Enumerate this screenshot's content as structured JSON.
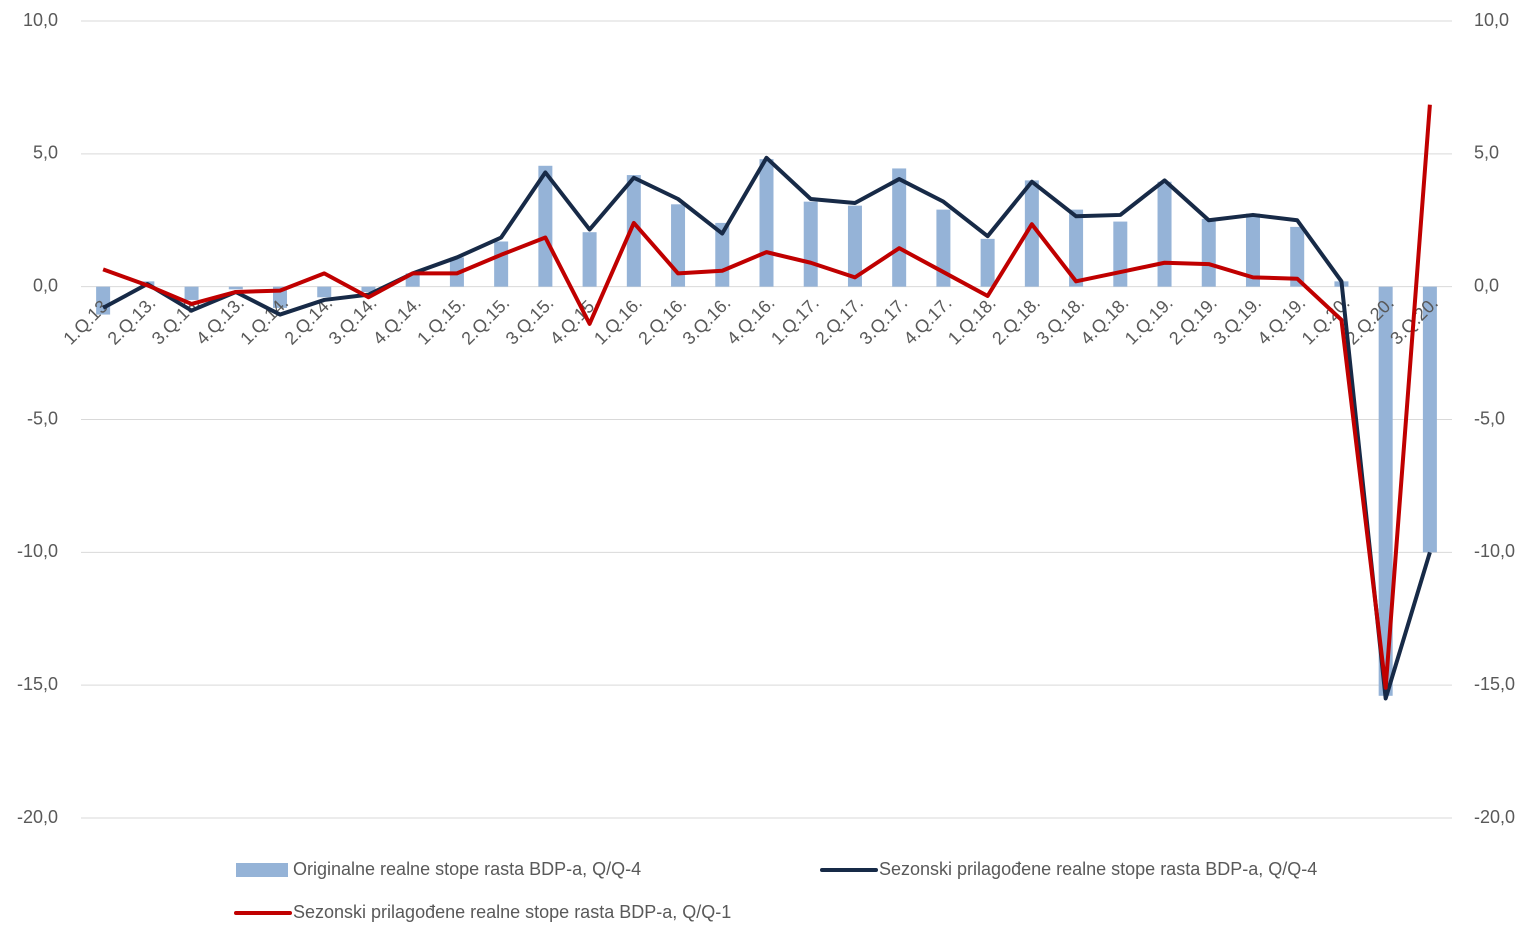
{
  "chart_data": {
    "type": "combo",
    "categories": [
      "1.Q.13.",
      "2.Q.13.",
      "3.Q.13.",
      "4.Q.13.",
      "1.Q.14.",
      "2.Q.14.",
      "3.Q.14.",
      "4.Q.14.",
      "1.Q.15.",
      "2.Q.15.",
      "3.Q.15.",
      "4.Q.15.",
      "1.Q.16.",
      "2.Q.16.",
      "3.Q.16.",
      "4.Q.16.",
      "1.Q.17.",
      "2.Q.17.",
      "3.Q.17.",
      "4.Q.17.",
      "1.Q.18.",
      "2.Q.18.",
      "3.Q.18.",
      "4.Q.18.",
      "1.Q.19.",
      "2.Q.19.",
      "3.Q.19.",
      "4.Q.19.",
      "1.Q.20.",
      "2.Q.20.",
      "3.Q.20."
    ],
    "series": [
      {
        "name": "Originalne realne stope rasta BDP-a, Q/Q-4",
        "type": "bar",
        "color": "#95b3d7",
        "values": [
          -1.05,
          0.2,
          -0.5,
          -0.1,
          -0.8,
          -0.4,
          -0.2,
          0.5,
          1.1,
          1.7,
          4.55,
          2.05,
          4.2,
          3.1,
          2.4,
          4.8,
          3.2,
          3.05,
          4.45,
          2.9,
          1.8,
          4.0,
          2.9,
          2.45,
          3.95,
          2.55,
          2.75,
          2.25,
          0.2,
          -15.4,
          -10.0
        ]
      },
      {
        "name": "Sezonski prilagođene realne stope rasta BDP-a, Q/Q-4",
        "type": "line",
        "color": "#172a47",
        "values": [
          -0.8,
          0.1,
          -0.9,
          -0.2,
          -1.05,
          -0.5,
          -0.3,
          0.5,
          1.1,
          1.85,
          4.3,
          2.15,
          4.1,
          3.3,
          2.0,
          4.85,
          3.3,
          3.15,
          4.05,
          3.2,
          1.9,
          3.95,
          2.65,
          2.7,
          4.0,
          2.5,
          2.7,
          2.5,
          0.2,
          -15.5,
          -10.0
        ]
      },
      {
        "name": "Sezonski prilagođene realne stope rasta BDP-a, Q/Q-1",
        "type": "line",
        "color": "#c00000",
        "values": [
          0.65,
          0.05,
          -0.65,
          -0.2,
          -0.15,
          0.5,
          -0.4,
          0.5,
          0.5,
          1.2,
          1.85,
          -1.4,
          2.4,
          0.5,
          0.6,
          1.3,
          0.9,
          0.35,
          1.45,
          0.55,
          -0.35,
          2.35,
          0.2,
          0.55,
          0.9,
          0.85,
          0.35,
          0.3,
          -1.25,
          -15.1,
          6.85
        ]
      }
    ],
    "ylim": [
      -20,
      10
    ],
    "yticks": [
      {
        "value": 10,
        "label": "10,0"
      },
      {
        "value": 5,
        "label": "5,0"
      },
      {
        "value": 0,
        "label": "0,0"
      },
      {
        "value": -5,
        "label": "-5,0"
      },
      {
        "value": -10,
        "label": "-10,0"
      },
      {
        "value": -15,
        "label": "-15,0"
      },
      {
        "value": -20,
        "label": "-20,0"
      }
    ],
    "y2lim": [
      -20,
      10
    ],
    "y2ticks": [
      {
        "value": 10,
        "label": "10,0"
      },
      {
        "value": 5,
        "label": "5,0"
      },
      {
        "value": 0,
        "label": "0,0"
      },
      {
        "value": -5,
        "label": "-5,0"
      },
      {
        "value": -10,
        "label": "-10,0"
      },
      {
        "value": -15,
        "label": "-15,0"
      },
      {
        "value": -20,
        "label": "-20,0"
      }
    ],
    "grid": true,
    "legend": "bottom"
  }
}
